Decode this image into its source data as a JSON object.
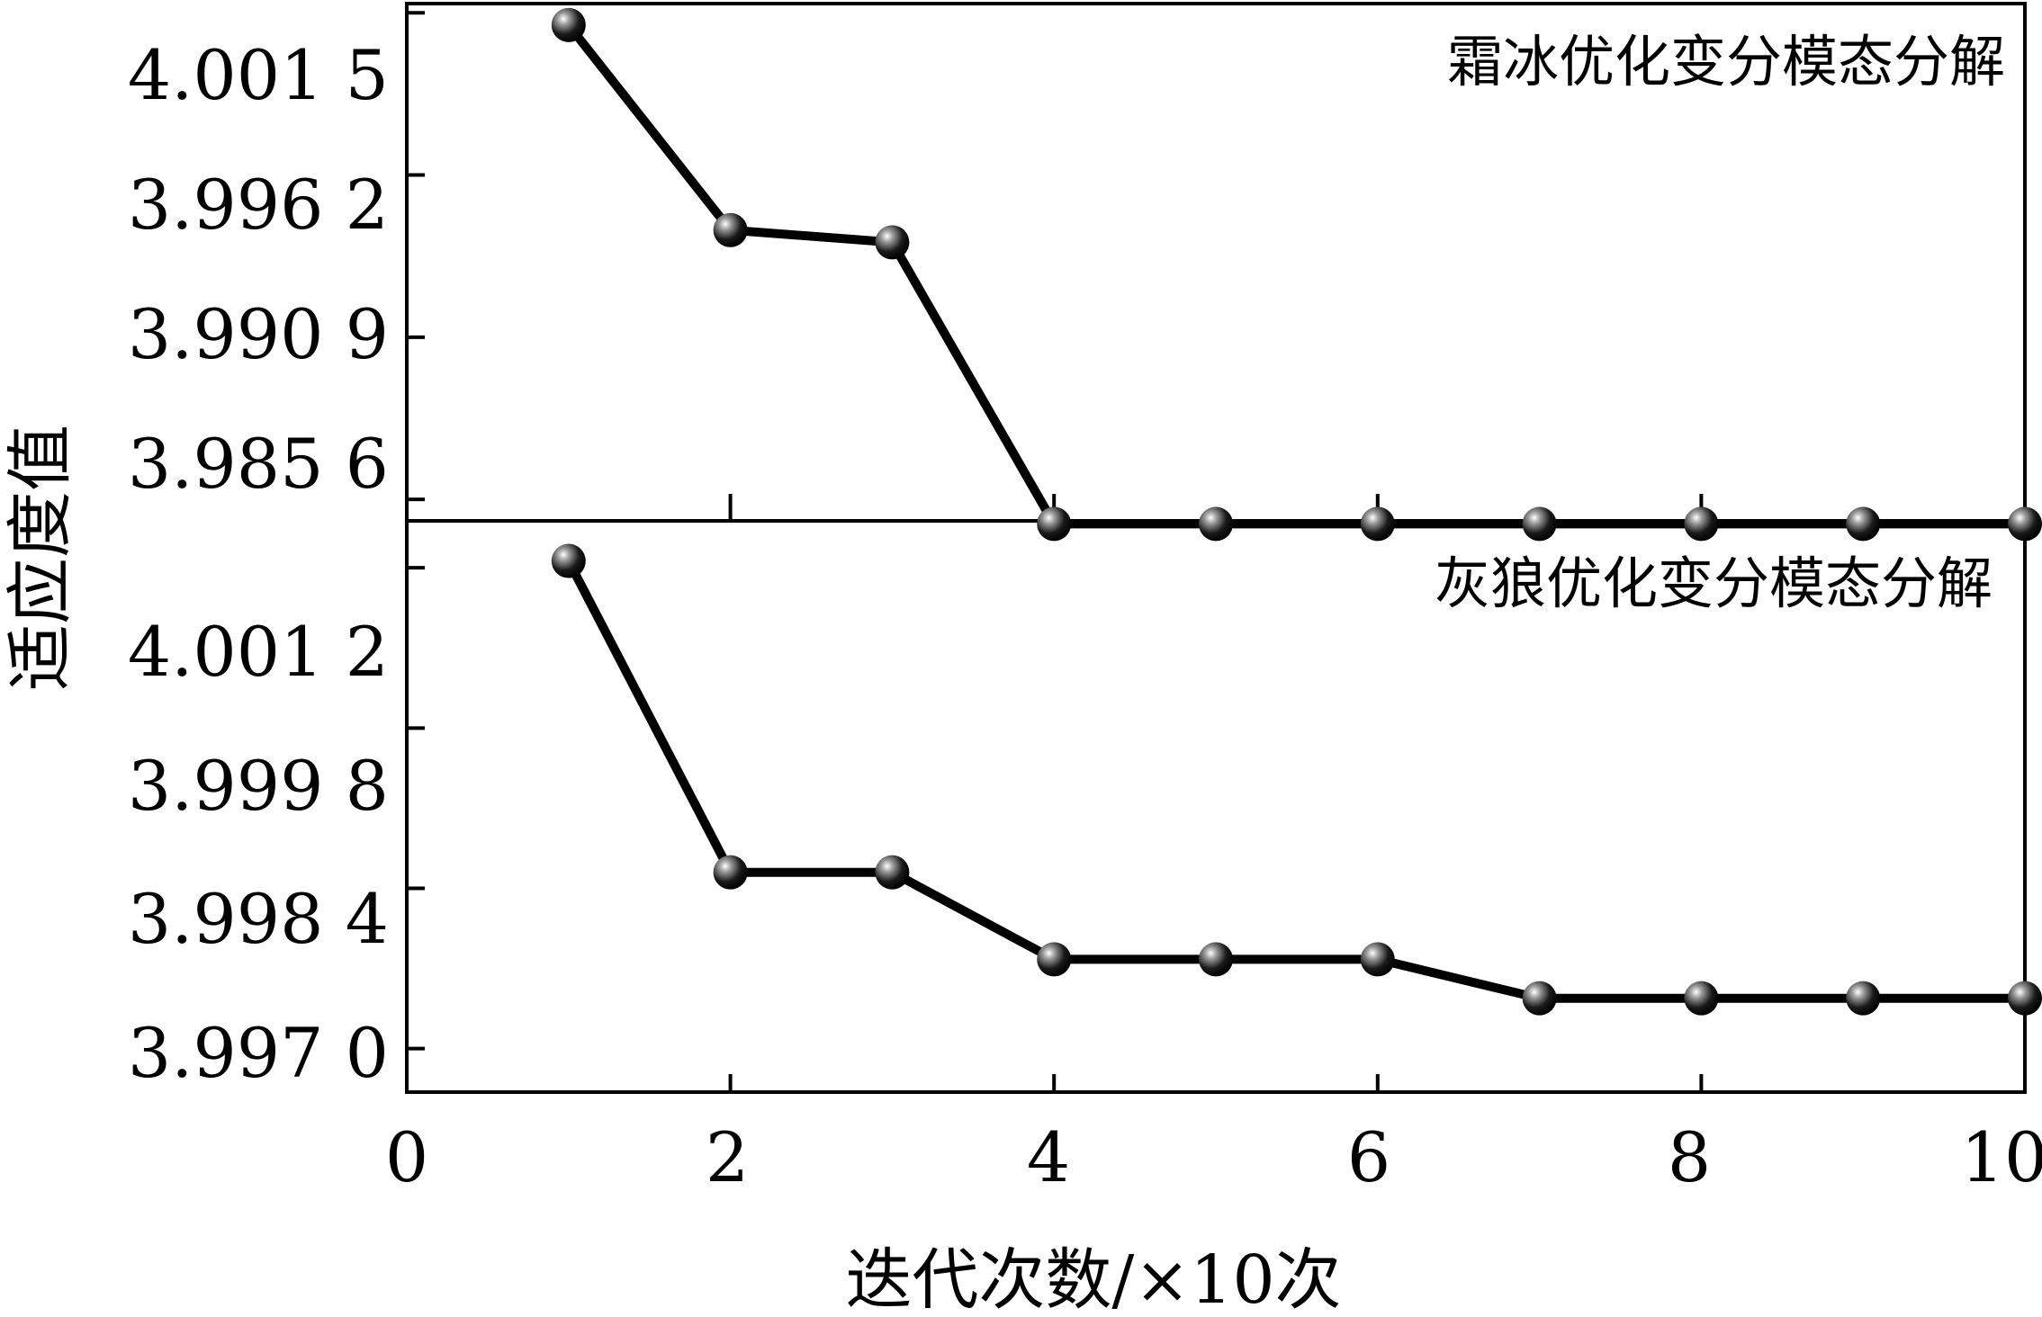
{
  "chart_data": {
    "type": "line",
    "shared_x_axis": {
      "label": "迭代次数/×10次",
      "xlim": [
        0,
        10
      ],
      "ticks": [
        "0",
        "2",
        "4",
        "6",
        "8",
        "10"
      ]
    },
    "shared_y_label": "适应度值",
    "panels": [
      {
        "annotation": "霜冰优化变分模态分解",
        "ylim": [
          3.9849,
          4.0018
        ],
        "y_ticks": [
          "4.001 5",
          "3.996 2",
          "3.990 9",
          "3.985 6"
        ],
        "y_tick_values": [
          4.0015,
          3.9962,
          3.9909,
          3.9856
        ],
        "series": [
          {
            "x": [
              1,
              2,
              3,
              4,
              5,
              6,
              7,
              8,
              9,
              10
            ],
            "values": [
              4.0011,
              3.9944,
              3.994,
              3.9848,
              3.9848,
              3.9848,
              3.9848,
              3.9848,
              3.9848,
              3.9848
            ]
          }
        ]
      },
      {
        "annotation": "灰狼优化变分模态分解",
        "ylim": [
          3.99662,
          4.00161
        ],
        "y_ticks": [
          "4.001 2",
          "3.999 8",
          "3.998 4",
          "3.997 0"
        ],
        "y_tick_values": [
          4.0012,
          3.9998,
          3.9984,
          3.997
        ],
        "series": [
          {
            "x": [
              1,
              2,
              3,
              4,
              5,
              6,
              7,
              8,
              9,
              10
            ],
            "values": [
              4.00126,
              3.99854,
              3.99854,
              3.99778,
              3.99778,
              3.99778,
              3.99744,
              3.99744,
              3.99744,
              3.99744
            ]
          }
        ]
      }
    ]
  }
}
